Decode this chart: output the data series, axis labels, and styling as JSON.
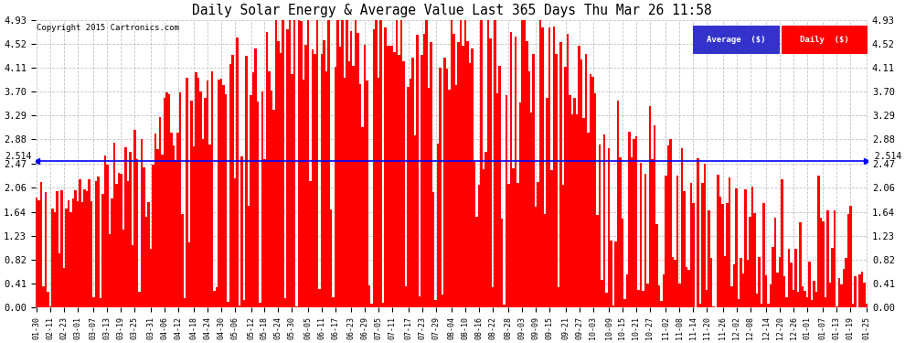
{
  "title": "Daily Solar Energy & Average Value Last 365 Days Thu Mar 26 11:58",
  "copyright": "Copyright 2015 Cartronics.com",
  "average_value": 2.514,
  "average_label": "Average  ($)",
  "daily_label": "Daily  ($)",
  "bar_color": "#FF0000",
  "average_line_color": "#0000FF",
  "background_color": "#FFFFFF",
  "plot_bg_color": "#FFFFFF",
  "yticks": [
    0.0,
    0.41,
    0.82,
    1.23,
    1.64,
    2.06,
    2.47,
    2.88,
    3.29,
    3.7,
    4.11,
    4.52,
    4.93
  ],
  "ylim": [
    0.0,
    4.93
  ],
  "grid_color": "#AAAAAA",
  "x_labels": [
    "01-30",
    "02-11",
    "02-23",
    "03-01",
    "03-07",
    "03-13",
    "03-19",
    "03-25",
    "03-31",
    "04-06",
    "04-12",
    "04-18",
    "04-24",
    "04-30",
    "05-06",
    "05-12",
    "05-18",
    "05-24",
    "05-30",
    "06-05",
    "06-11",
    "06-17",
    "06-23",
    "06-29",
    "07-05",
    "07-11",
    "07-17",
    "07-23",
    "07-29",
    "08-04",
    "08-10",
    "08-16",
    "08-22",
    "08-28",
    "09-03",
    "09-09",
    "09-15",
    "09-21",
    "09-27",
    "10-03",
    "10-09",
    "10-15",
    "10-21",
    "10-27",
    "11-02",
    "11-08",
    "11-14",
    "11-20",
    "11-26",
    "12-02",
    "12-08",
    "12-14",
    "12-20",
    "12-26",
    "01-01",
    "01-07",
    "01-13",
    "01-19",
    "01-25"
  ],
  "num_bars": 365,
  "figsize": [
    9.9,
    3.75
  ],
  "dpi": 100
}
